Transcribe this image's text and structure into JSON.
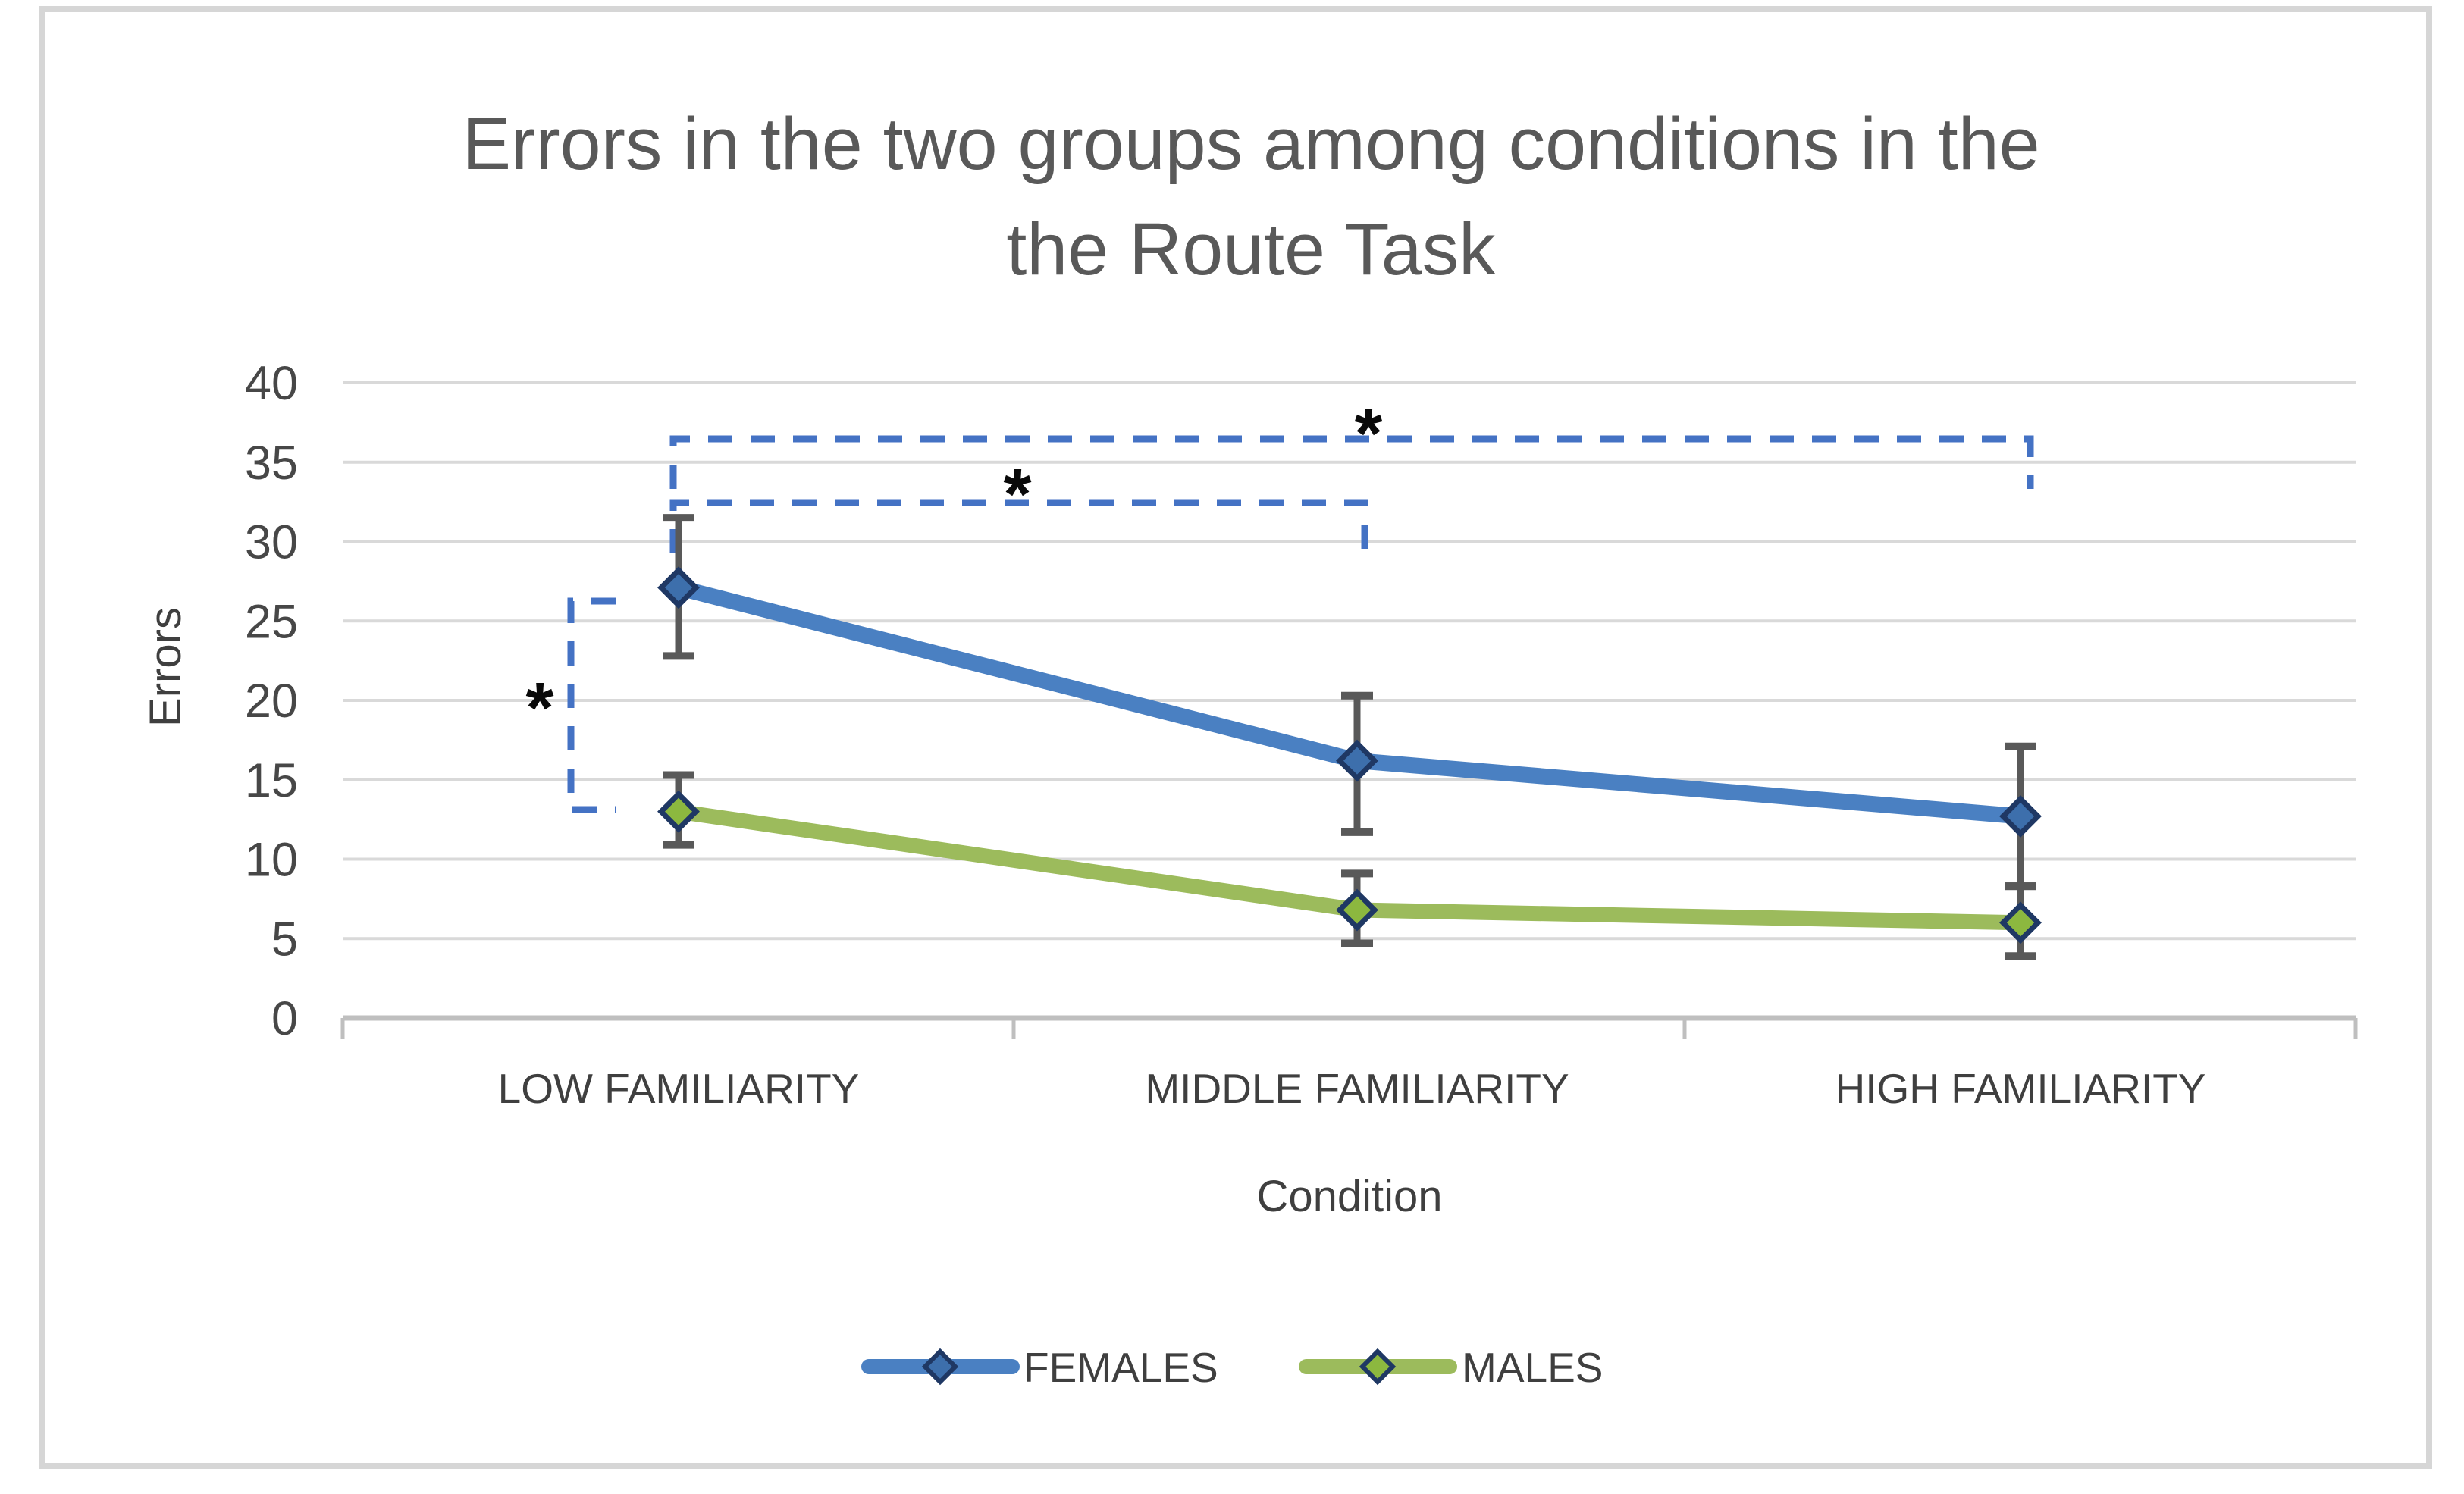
{
  "chart_data": {
    "type": "line",
    "title_lines": [
      "Errors in the two groups among conditions in the",
      "the Route Task"
    ],
    "xlabel": "Condition",
    "ylabel": "Errors",
    "categories": [
      "LOW FAMILIARITY",
      "MIDDLE FAMILIARITY",
      "HIGH FAMILIARITY"
    ],
    "y_ticks": [
      0,
      5,
      10,
      15,
      20,
      25,
      30,
      35,
      40
    ],
    "ylim": [
      0,
      40
    ],
    "grid": true,
    "legend_position": "bottom",
    "series": [
      {
        "name": "FEMALES",
        "color": "#4A80C2",
        "marker_fill": "#3D6FAC",
        "line_width": 21,
        "values": [
          27.1,
          16.2,
          12.7
        ],
        "err_low": [
          22.8,
          11.7,
          8.3
        ],
        "err_high": [
          31.5,
          20.3,
          17.1
        ]
      },
      {
        "name": "MALES",
        "color": "#9CBB5C",
        "marker_fill": "#8CB83F",
        "line_width": 20,
        "values": [
          13.0,
          6.8,
          6.0
        ],
        "err_low": [
          10.9,
          4.7,
          3.9
        ],
        "err_high": [
          15.3,
          9.1,
          8.3
        ]
      }
    ],
    "significance": [
      {
        "between": "FEMALES vs MALES at LOW FAMILIARITY",
        "label": "*",
        "shape": "vertical",
        "x": 753,
        "y_top": 793,
        "y_bottom": 1068,
        "tick_len": 59,
        "star_x": 712,
        "star_y": 920
      },
      {
        "between": "LOW vs MIDDLE FAMILIARITY (FEMALES)",
        "label": "*",
        "shape": "horizontal",
        "y": 663,
        "x_left": 888,
        "x_right": 1800,
        "drop": 67,
        "star_x": 1342,
        "star_y": 638
      },
      {
        "between": "LOW vs HIGH FAMILIARITY (FEMALES)",
        "label": "*",
        "shape": "horizontal",
        "y": 579,
        "x_left": 888,
        "x_right": 2678,
        "drop": 66,
        "star_x": 1805,
        "star_y": 558
      }
    ],
    "colors": {
      "bracket": "#4472C4",
      "error_bar": "#595959",
      "marker_border": "#1F3864",
      "grid": "#D9D9D9",
      "axis": "#BFBFBF",
      "frame": "#D6D6D6",
      "title_text": "#595959",
      "label_text": "#3f3f3f"
    }
  }
}
